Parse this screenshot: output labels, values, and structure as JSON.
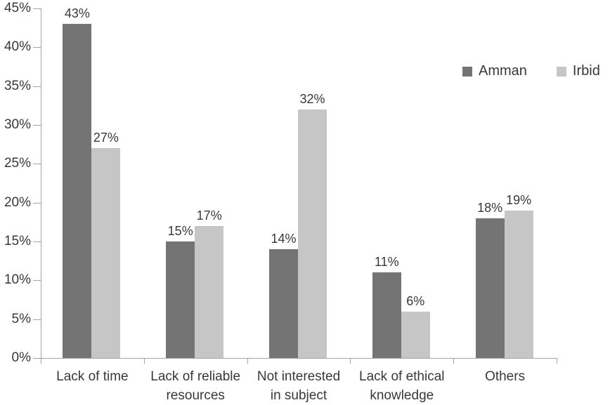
{
  "chart_data": {
    "type": "bar",
    "title": "",
    "xlabel": "",
    "ylabel": "",
    "categories": [
      "Lack of time",
      "Lack of reliable resources",
      "Not interested in subject",
      "Lack of ethical knowledge",
      "Others"
    ],
    "category_lines": [
      [
        "Lack of time"
      ],
      [
        "Lack of reliable",
        "resources"
      ],
      [
        "Not interested",
        "in subject"
      ],
      [
        "Lack of ethical",
        "knowledge"
      ],
      [
        "Others"
      ]
    ],
    "series": [
      {
        "name": "Amman",
        "color": "#747474",
        "values": [
          43,
          15,
          14,
          11,
          18
        ]
      },
      {
        "name": "Irbid",
        "color": "#c6c6c6",
        "values": [
          27,
          17,
          32,
          6,
          19
        ]
      }
    ],
    "data_labels": [
      "43%",
      "27%",
      "15%",
      "17%",
      "14%",
      "32%",
      "11%",
      "6%",
      "18%",
      "19%"
    ],
    "value_suffix": "%",
    "ylim": [
      0,
      45
    ],
    "ytick_step": 5,
    "ytick_labels": [
      "0%",
      "5%",
      "10%",
      "15%",
      "20%",
      "25%",
      "30%",
      "35%",
      "40%",
      "45%"
    ],
    "grid": false,
    "legend_position": "top-right",
    "axis_color": "#a3a3a3",
    "text_color": "#383838",
    "background_color": "#ffffff"
  }
}
